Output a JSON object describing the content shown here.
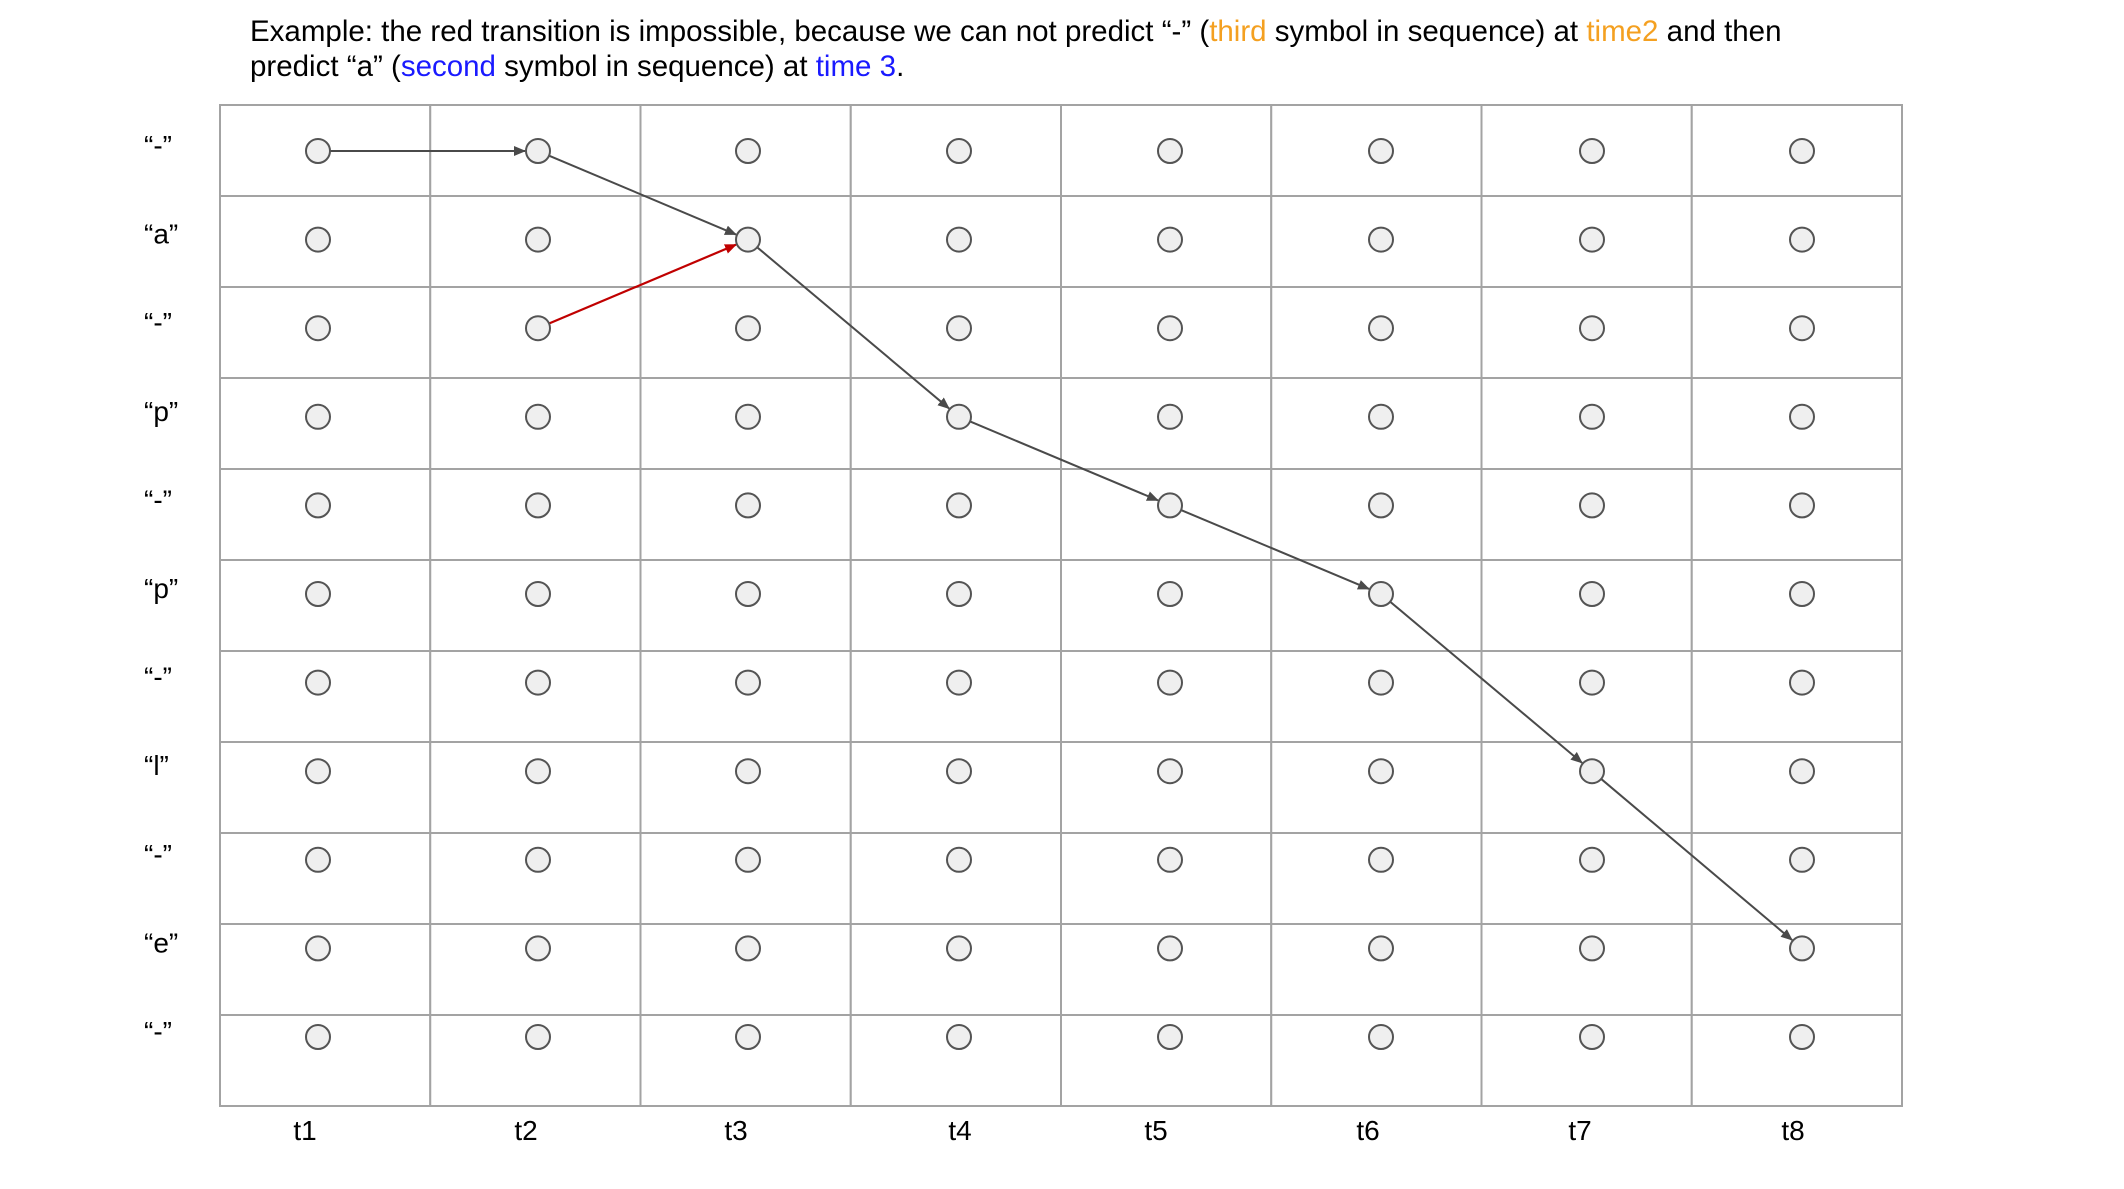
{
  "caption": {
    "line1": [
      {
        "text": "Example: the red transition is impossible, because we can not predict “-” (",
        "color": "#000000"
      },
      {
        "text": "third",
        "color": "#f4a020"
      },
      {
        "text": " symbol in sequence) at ",
        "color": "#000000"
      },
      {
        "text": "time2",
        "color": "#f4a020"
      },
      {
        "text": " and then",
        "color": "#000000"
      }
    ],
    "line2": [
      {
        "text": "predict “a” (",
        "color": "#000000"
      },
      {
        "text": "second",
        "color": "#1a1aff"
      },
      {
        "text": " symbol in sequence) at ",
        "color": "#000000"
      },
      {
        "text": "time 3",
        "color": "#1a1aff"
      },
      {
        "text": ".",
        "color": "#000000"
      }
    ]
  },
  "rows": [
    "“-”",
    "“a”",
    "“-”",
    "“p”",
    "“-”",
    "“p”",
    "“-”",
    "“l”",
    "“-”",
    "“e”",
    "“-”"
  ],
  "columns": [
    "t1",
    "t2",
    "t3",
    "t4",
    "t5",
    "t6",
    "t7",
    "t8"
  ],
  "colors": {
    "path": "#4a4a4a",
    "impossible_transition": "#c00000",
    "grid": "#a3a3a3",
    "node_fill": "#efefef"
  },
  "path": [
    {
      "col": 0,
      "row": 0
    },
    {
      "col": 1,
      "row": 0
    },
    {
      "col": 2,
      "row": 1
    },
    {
      "col": 3,
      "row": 3
    },
    {
      "col": 4,
      "row": 4
    },
    {
      "col": 5,
      "row": 5
    },
    {
      "col": 6,
      "row": 7
    },
    {
      "col": 7,
      "row": 9
    }
  ],
  "impossible_transition": {
    "from": {
      "col": 1,
      "row": 2
    },
    "to": {
      "col": 2,
      "row": 1
    }
  }
}
